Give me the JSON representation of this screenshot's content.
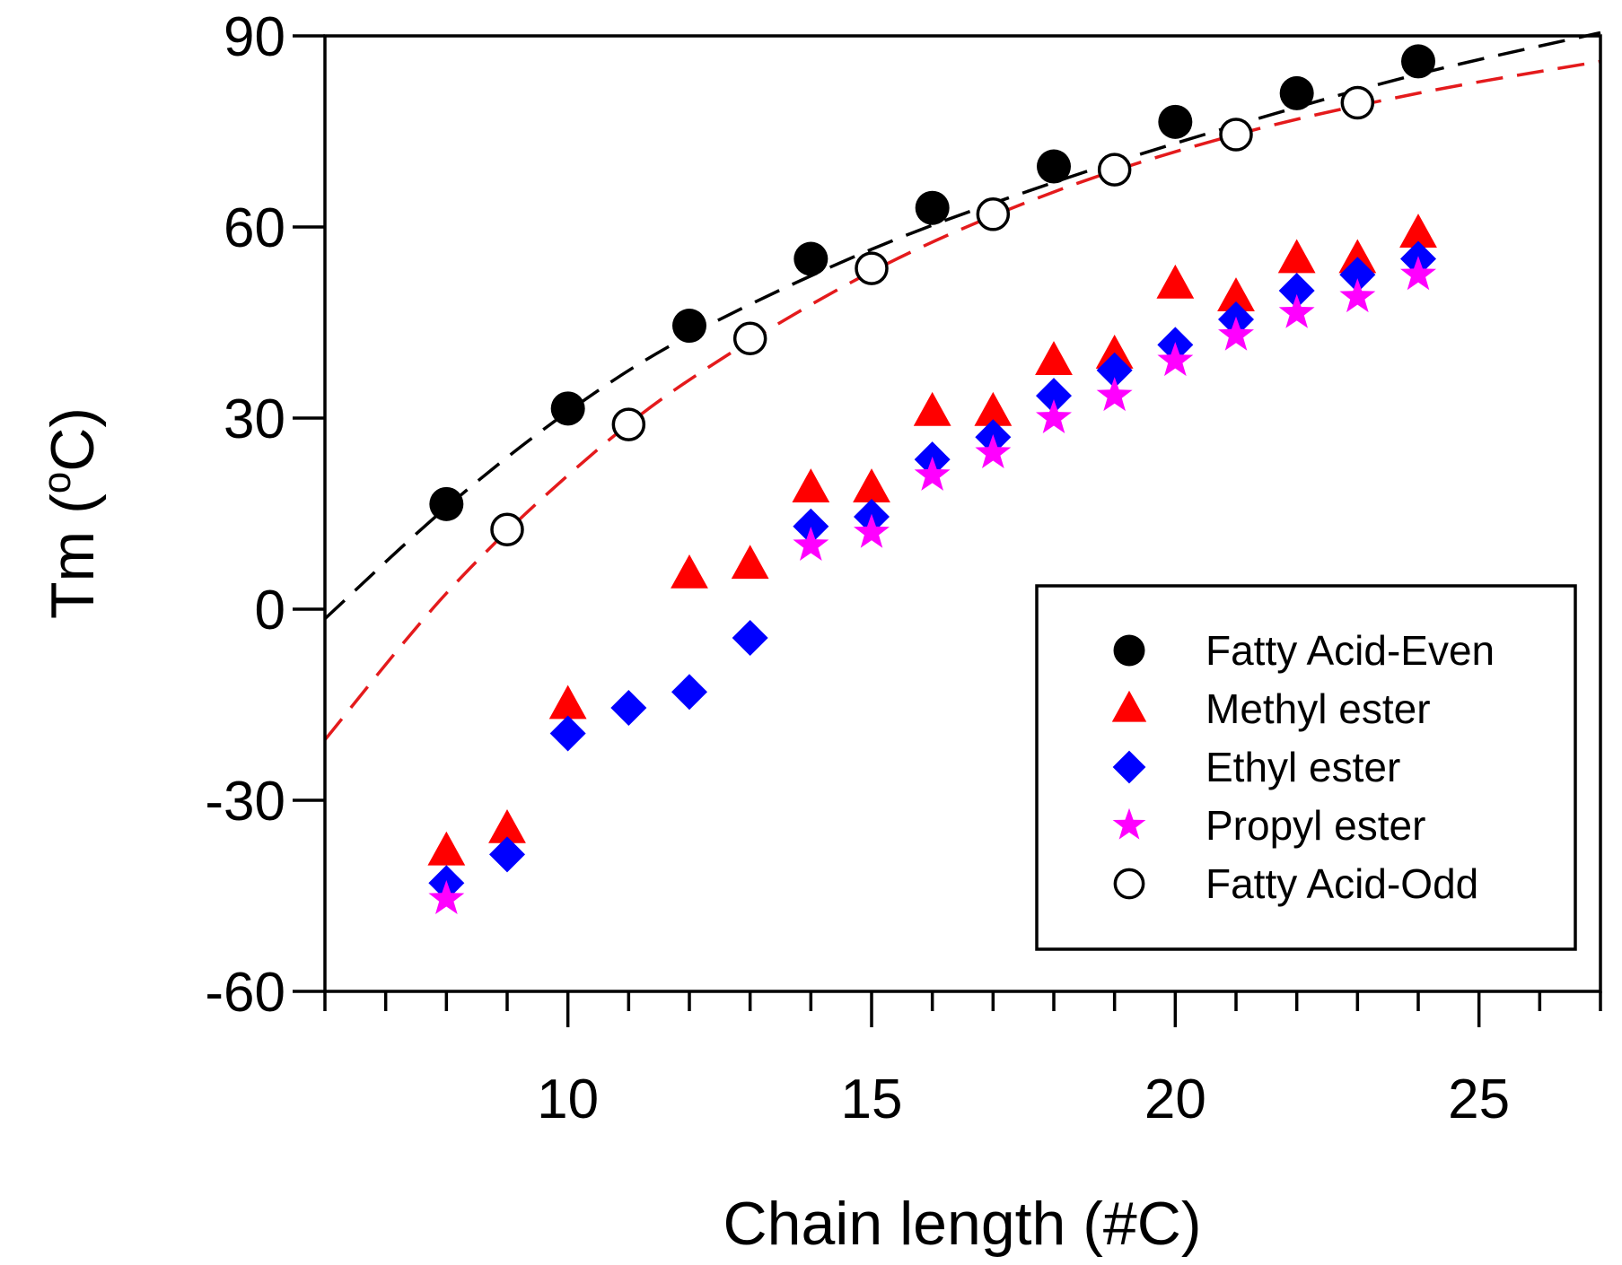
{
  "chart_data": {
    "type": "scatter",
    "title": "",
    "xlabel": "Chain length (#C)",
    "ylabel_main": "Tm (",
    "ylabel_sup": "o",
    "ylabel_tail": "C)",
    "xlim": [
      6,
      27
    ],
    "ylim": [
      -60,
      90
    ],
    "x_major_ticks": [
      10,
      15,
      20,
      25
    ],
    "x_major_tick_labels": [
      "10",
      "15",
      "20",
      "25"
    ],
    "x_minor_step": 1,
    "y_ticks": [
      -60,
      -30,
      0,
      30,
      60,
      90
    ],
    "y_tick_labels": [
      "-60",
      "-30",
      "0",
      "30",
      "60",
      "90"
    ],
    "grid": false,
    "legend_position": "bottom-right",
    "series": [
      {
        "name": "Fatty Acid-Even",
        "marker": "circle-filled",
        "color": "#000000",
        "x": [
          8,
          10,
          12,
          14,
          16,
          18,
          20,
          22,
          24
        ],
        "y": [
          16.5,
          31.5,
          44.5,
          55,
          63,
          69.5,
          76.5,
          81,
          86
        ]
      },
      {
        "name": "Methyl ester",
        "marker": "triangle",
        "color": "#ff0000",
        "x": [
          8,
          9,
          10,
          12,
          13,
          14,
          15,
          16,
          17,
          18,
          19,
          20,
          21,
          22,
          23,
          24
        ],
        "y": [
          -38,
          -34.5,
          -15,
          5.5,
          7,
          19,
          19,
          31,
          31,
          39,
          40,
          51,
          49,
          55,
          55,
          59
        ]
      },
      {
        "name": "Ethyl ester",
        "marker": "diamond",
        "color": "#0000ff",
        "x": [
          8,
          9,
          10,
          11,
          12,
          13,
          14,
          15,
          16,
          17,
          18,
          19,
          20,
          21,
          22,
          23,
          24
        ],
        "y": [
          -43,
          -38.5,
          -19.5,
          -15.5,
          -13,
          -4.5,
          13,
          14.5,
          23.5,
          27,
          33.5,
          37.5,
          41.5,
          45.5,
          50,
          52.5,
          55
        ]
      },
      {
        "name": "Propyl ester",
        "marker": "star",
        "color": "#ff00ff",
        "x": [
          8,
          14,
          15,
          16,
          17,
          18,
          19,
          20,
          21,
          22,
          23,
          24
        ],
        "y": [
          -45.5,
          10,
          12,
          21,
          24.5,
          30,
          33.5,
          39,
          43,
          46.5,
          49,
          52.5
        ]
      },
      {
        "name": "Fatty Acid-Odd",
        "marker": "circle-open",
        "color": "#000000",
        "x": [
          9,
          11,
          13,
          15,
          17,
          19,
          21,
          23
        ],
        "y": [
          12.5,
          29,
          42.5,
          53.5,
          62,
          69,
          74.5,
          79.5
        ]
      }
    ],
    "fit_curves": [
      {
        "name": "Fatty Acid-Even fit",
        "color": "#000000",
        "style": "dashed",
        "x": [
          6,
          8,
          10,
          12,
          15,
          18,
          21,
          24,
          27
        ],
        "y": [
          -1.5,
          16,
          31,
          43,
          56.5,
          67,
          76,
          84,
          90.5
        ]
      },
      {
        "name": "Fatty Acid-Odd fit",
        "color": "#e41a1c",
        "style": "dashed",
        "x": [
          6,
          8,
          10,
          12,
          15,
          18,
          21,
          24,
          27
        ],
        "y": [
          -20.5,
          2.5,
          21,
          36,
          53,
          65.5,
          74.5,
          81,
          86
        ]
      }
    ]
  }
}
